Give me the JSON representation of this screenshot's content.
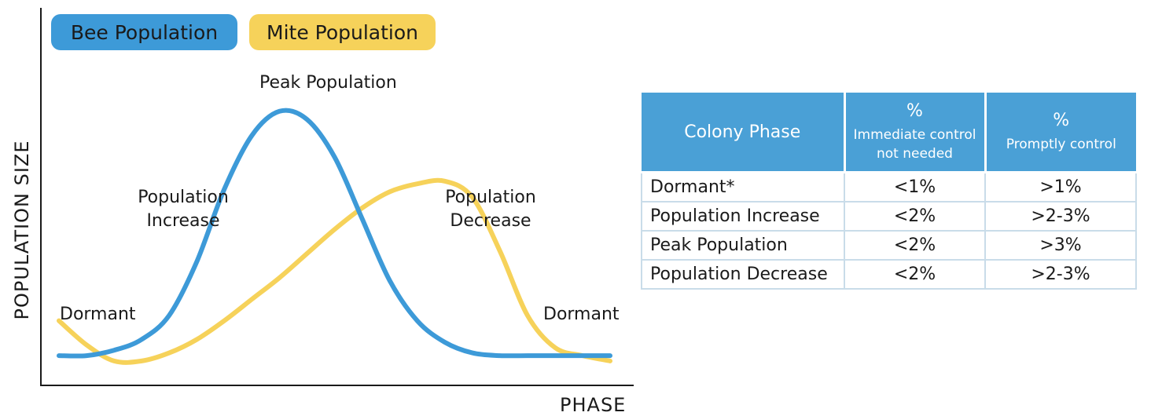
{
  "legend": {
    "bee": "Bee Population",
    "mite": "Mite Population"
  },
  "colors": {
    "bee": "#3d9ad8",
    "mite": "#f6d25a",
    "table_header": "#4aa0d6",
    "table_border": "#c9dce9"
  },
  "annotations": {
    "dormant_left": "Dormant",
    "increase_line1": "Population",
    "increase_line2": "Increase",
    "peak": "Peak Population",
    "decrease_line1": "Population",
    "decrease_line2": "Decrease",
    "dormant_right": "Dormant"
  },
  "chart_data": {
    "type": "line",
    "xlabel": "PHASE",
    "ylabel": "POPULATION SIZE",
    "xlim": [
      0,
      100
    ],
    "ylim": [
      0,
      100
    ],
    "x_ticks": "none",
    "y_ticks": "none",
    "grid": false,
    "legend_position": "top-left",
    "series": [
      {
        "name": "Bee Population",
        "color": "#3d9ad8",
        "x": [
          0,
          5,
          10,
          15,
          20,
          25,
          30,
          35,
          40,
          45,
          50,
          55,
          60,
          65,
          70,
          75,
          80,
          85,
          90,
          95,
          100
        ],
        "y": [
          7,
          7,
          9,
          13,
          22,
          42,
          69,
          89,
          98,
          95,
          81,
          58,
          35,
          20,
          12,
          8,
          7,
          7,
          7,
          7,
          7
        ]
      },
      {
        "name": "Mite Population",
        "color": "#f6d25a",
        "x": [
          0,
          5,
          10,
          15,
          20,
          25,
          30,
          35,
          40,
          45,
          50,
          55,
          60,
          65,
          70,
          75,
          80,
          85,
          90,
          95,
          100
        ],
        "y": [
          20,
          11,
          5,
          5,
          8,
          13,
          20,
          28,
          36,
          45,
          54,
          62,
          68,
          71,
          72,
          66,
          46,
          22,
          10,
          7,
          5
        ]
      }
    ]
  },
  "table": {
    "headers": [
      {
        "title": "Colony Phase",
        "pct": "",
        "sub_line1": "",
        "sub_line2": ""
      },
      {
        "title": "",
        "pct": "%",
        "sub_line1": "Immediate control",
        "sub_line2": "not needed"
      },
      {
        "title": "",
        "pct": "%",
        "sub_line1": "Promptly control",
        "sub_line2": ""
      }
    ],
    "rows": [
      [
        "Dormant*",
        "<1%",
        ">1%"
      ],
      [
        "Population Increase",
        "<2%",
        ">2-3%"
      ],
      [
        "Peak Population",
        "<2%",
        ">3%"
      ],
      [
        "Population Decrease",
        "<2%",
        ">2-3%"
      ]
    ]
  }
}
